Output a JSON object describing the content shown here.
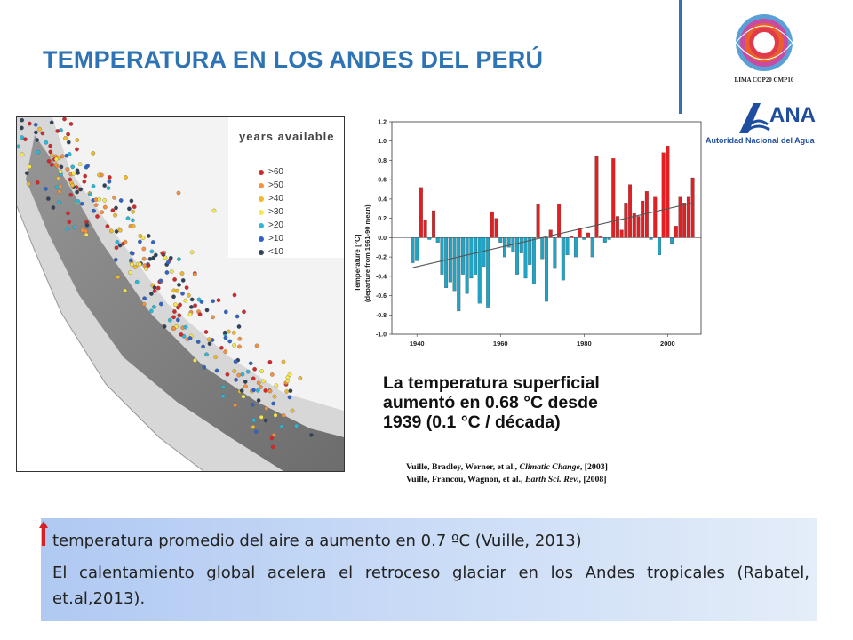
{
  "slide": {
    "title": "TEMPERATURA EN LOS ANDES DEL PERÚ"
  },
  "logos": {
    "cop_text": "LIMA COP20 CMP10",
    "ana_name": "ANA",
    "ana_subtitle": "Autoridad Nacional del Agua"
  },
  "map_legend": {
    "title": "years available",
    "items": [
      {
        "label": ">60",
        "color": "#d62728"
      },
      {
        "label": ">50",
        "color": "#f5913e"
      },
      {
        "label": ">40",
        "color": "#f2b92a"
      },
      {
        "label": ">30",
        "color": "#f6e84a"
      },
      {
        "label": ">20",
        "color": "#2bb8d8"
      },
      {
        "label": ">10",
        "color": "#2f63c8"
      },
      {
        "label": "<10",
        "color": "#30415a"
      }
    ]
  },
  "chart_data": {
    "type": "bar",
    "ylabel": "Temperature [°C]",
    "ylabel2": "(departure from 1961-90 mean)",
    "ylim": [
      -1.0,
      1.2
    ],
    "yticks": [
      -1.0,
      -0.8,
      -0.6,
      -0.4,
      -0.2,
      0.0,
      0.2,
      0.4,
      0.6,
      0.8,
      1.0,
      1.2
    ],
    "xlim": [
      1934,
      2008
    ],
    "xticks": [
      1940,
      1960,
      1980,
      2000
    ],
    "x": [
      1939,
      1940,
      1941,
      1942,
      1943,
      1944,
      1945,
      1946,
      1947,
      1948,
      1949,
      1950,
      1951,
      1952,
      1953,
      1954,
      1955,
      1956,
      1957,
      1958,
      1959,
      1960,
      1961,
      1962,
      1963,
      1964,
      1965,
      1966,
      1967,
      1968,
      1969,
      1970,
      1971,
      1972,
      1973,
      1974,
      1975,
      1976,
      1977,
      1978,
      1979,
      1980,
      1981,
      1982,
      1983,
      1984,
      1985,
      1986,
      1987,
      1988,
      1989,
      1990,
      1991,
      1992,
      1993,
      1994,
      1995,
      1996,
      1997,
      1998,
      1999,
      2000,
      2001,
      2002,
      2003,
      2004,
      2005,
      2006
    ],
    "values": [
      -0.26,
      -0.24,
      0.52,
      0.18,
      -0.02,
      0.28,
      -0.05,
      -0.38,
      -0.52,
      -0.46,
      -0.55,
      -0.76,
      -0.38,
      -0.58,
      -0.42,
      -0.38,
      -0.68,
      -0.3,
      -0.72,
      0.27,
      0.2,
      -0.05,
      -0.2,
      -0.1,
      -0.15,
      -0.38,
      -0.16,
      -0.42,
      -0.28,
      -0.48,
      0.35,
      -0.22,
      -0.66,
      0.08,
      -0.32,
      0.35,
      -0.44,
      -0.18,
      0.02,
      -0.2,
      0.1,
      -0.02,
      0.05,
      -0.2,
      0.84,
      0.02,
      -0.05,
      -0.02,
      0.82,
      0.22,
      0.08,
      0.36,
      0.55,
      0.25,
      0.22,
      0.38,
      0.48,
      -0.02,
      0.42,
      -0.18,
      0.88,
      0.95,
      -0.06,
      0.12,
      0.42,
      0.36,
      0.42,
      0.62
    ],
    "trend": {
      "x0": 1939,
      "y0": -0.31,
      "x1": 2006,
      "y1": 0.36
    },
    "positive_color": "#e31f23",
    "negative_color": "#21a3c4"
  },
  "caption": {
    "line1": "La temperatura superficial",
    "line2": "aumentó en 0.68 °C desde",
    "line3": "1939 (0.1 °C / década)"
  },
  "references": [
    {
      "authors": "Vuille, Bradley, Werner, et al., ",
      "journal": "Climatic Change",
      "year": ", [2003]"
    },
    {
      "authors": "Vuille, Francou, Wagnon, et al., ",
      "journal": "Earth Sci. Rev.",
      "year": ", [2008]"
    }
  ],
  "info": {
    "line1": "temperatura promedio del aire a aumento en 0.7 ºC  (Vuille, 2013)",
    "line2": "El calentamiento global acelera el retroceso glaciar en los Andes tropicales (Rabatel, et.al,2013)."
  }
}
